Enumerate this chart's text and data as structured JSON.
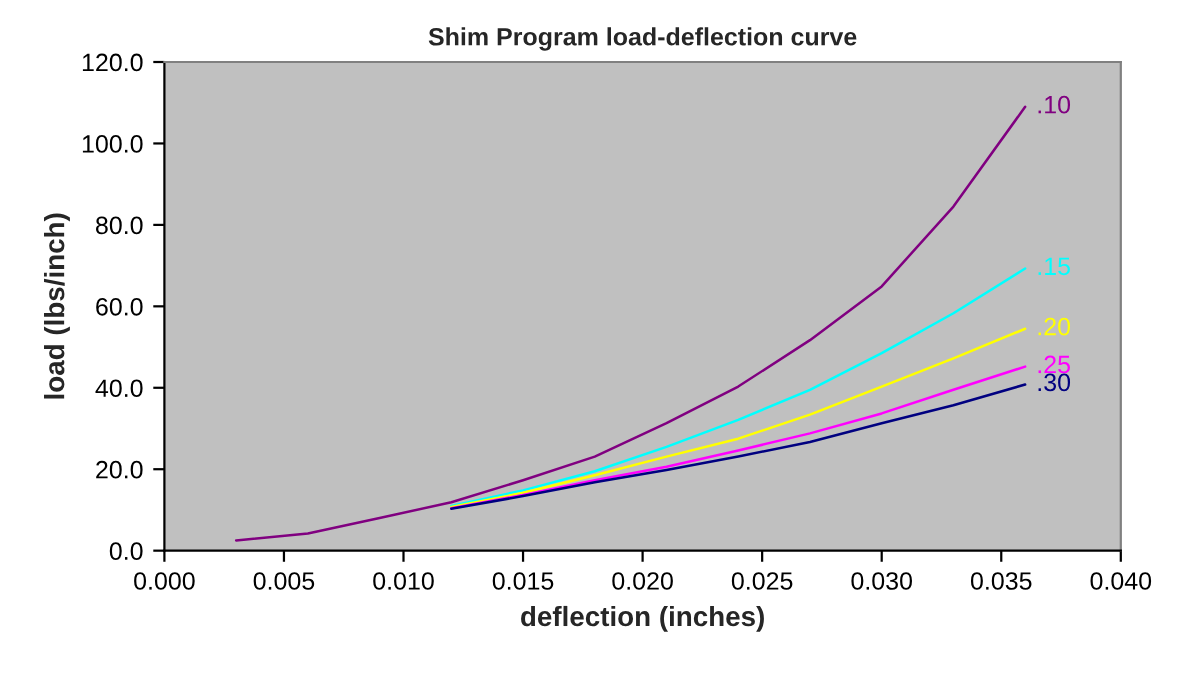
{
  "chart_data": {
    "type": "line",
    "title": "Shim Program load-deflection curve",
    "xlabel": "deflection (inches)",
    "ylabel": "load (lbs/inch)",
    "x": [
      0.003,
      0.006,
      0.009,
      0.012,
      0.015,
      0.018,
      0.021,
      0.024,
      0.027,
      0.03,
      0.033,
      0.036
    ],
    "series": [
      {
        "name": ".10",
        "color": "#800080",
        "values": [
          2.5,
          4.2,
          8.0,
          11.9,
          17.3,
          23.1,
          31.3,
          40.3,
          51.7,
          64.9,
          84.5,
          109.0
        ]
      },
      {
        "name": ".15",
        "color": "#00ffff",
        "values": [
          null,
          null,
          null,
          11.0,
          14.8,
          19.5,
          25.5,
          32.1,
          39.5,
          48.5,
          58.3,
          69.3
        ]
      },
      {
        "name": ".20",
        "color": "#ffff00",
        "values": [
          null,
          null,
          null,
          10.7,
          14.2,
          18.5,
          23.1,
          27.5,
          33.4,
          40.3,
          47.2,
          54.5
        ]
      },
      {
        "name": ".25",
        "color": "#ff00ff",
        "values": [
          null,
          null,
          null,
          10.4,
          13.7,
          17.3,
          20.6,
          24.6,
          28.8,
          33.7,
          39.5,
          45.2
        ]
      },
      {
        "name": ".30",
        "color": "#000080",
        "values": [
          null,
          null,
          null,
          10.3,
          13.4,
          16.8,
          19.8,
          23.1,
          26.7,
          31.3,
          35.7,
          40.8
        ]
      }
    ],
    "xlim": [
      0.0,
      0.04
    ],
    "xticks": [
      {
        "value": 0.0,
        "label": "0.000"
      },
      {
        "value": 0.005,
        "label": "0.005"
      },
      {
        "value": 0.01,
        "label": "0.010"
      },
      {
        "value": 0.015,
        "label": "0.015"
      },
      {
        "value": 0.02,
        "label": "0.020"
      },
      {
        "value": 0.025,
        "label": "0.025"
      },
      {
        "value": 0.03,
        "label": "0.030"
      },
      {
        "value": 0.035,
        "label": "0.035"
      },
      {
        "value": 0.04,
        "label": "0.040"
      }
    ],
    "ylim": [
      0,
      120
    ],
    "yticks": [
      {
        "value": 0,
        "label": "0.0"
      },
      {
        "value": 20,
        "label": "20.0"
      },
      {
        "value": 40,
        "label": "40.0"
      },
      {
        "value": 60,
        "label": "60.0"
      },
      {
        "value": 80,
        "label": "80.0"
      },
      {
        "value": 100,
        "label": "100.0"
      },
      {
        "value": 120,
        "label": "120.0"
      }
    ],
    "grid": false,
    "legend": false,
    "marker": "none",
    "line_style": "solid"
  }
}
